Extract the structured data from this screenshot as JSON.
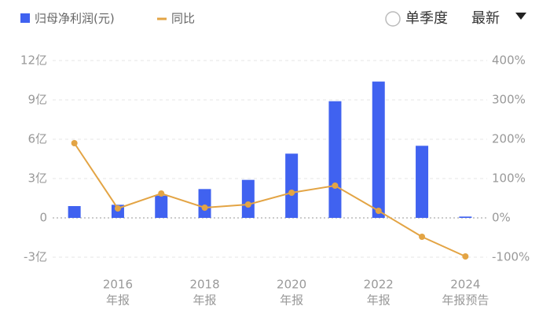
{
  "chart_data": {
    "type": "bar_line",
    "legend": {
      "bar": "归母净利润(元)",
      "line": "同比"
    },
    "controls": {
      "toggle": "单季度",
      "dropdown": "最新"
    },
    "categories": [
      null,
      "2016",
      null,
      "2018",
      null,
      "2020",
      null,
      "2022",
      null,
      "2024"
    ],
    "category_sublabels": [
      null,
      "年报",
      null,
      "年报",
      null,
      "年报",
      null,
      "年报",
      null,
      "年报预告"
    ],
    "series": [
      {
        "name": "归母净利润(元)",
        "type": "bar",
        "color": "#4062f0",
        "values": [
          0.9,
          1.0,
          1.7,
          2.2,
          2.9,
          4.9,
          8.9,
          10.4,
          5.5,
          0.1
        ]
      },
      {
        "name": "同比",
        "type": "line",
        "axis": "y2",
        "color": "#e3a444",
        "values": [
          190,
          24,
          62,
          26,
          34,
          64,
          82,
          18,
          -48,
          -98
        ]
      }
    ],
    "ylim": [
      -3,
      12
    ],
    "yticks": [
      {
        "value": -3,
        "label": "-3亿"
      },
      0,
      {
        "value": 3,
        "label": "3亿"
      },
      {
        "value": 6,
        "label": "6亿"
      },
      {
        "value": 9,
        "label": "9亿"
      },
      {
        "value": 12,
        "label": "12亿"
      }
    ],
    "y2lim": [
      -100,
      400
    ],
    "y2ticks": [
      {
        "value": -100,
        "label": "-100%"
      },
      {
        "value": 0,
        "label": "0%"
      },
      {
        "value": 100,
        "label": "100%"
      },
      {
        "value": 200,
        "label": "200%"
      },
      {
        "value": 300,
        "label": "300%"
      },
      {
        "value": 400,
        "label": "400%"
      }
    ],
    "grid": true
  }
}
